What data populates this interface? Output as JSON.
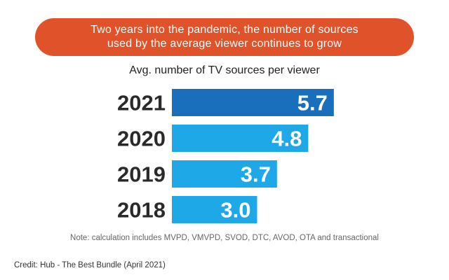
{
  "banner": {
    "line1": "Two years into the pandemic, the number of sources",
    "line2": "used by the average viewer continues to grow",
    "color": "#e0532a"
  },
  "chart_data": {
    "type": "bar",
    "orientation": "horizontal",
    "title": "Avg. number of TV sources per viewer",
    "categories": [
      "2021",
      "2020",
      "2019",
      "2018"
    ],
    "values": [
      5.7,
      4.8,
      3.7,
      3.0
    ],
    "value_labels": [
      "5.7",
      "4.8",
      "3.7",
      "3.0"
    ],
    "xlim": [
      0,
      6.5
    ],
    "grid": false,
    "legend": "none",
    "colors": [
      "#1a6fbd",
      "#1fa8e8",
      "#1fa8e8",
      "#1fa8e8"
    ]
  },
  "footer": {
    "note": "Note: calculation includes MVPD, VMVPD, SVOD, DTC, AVOD, OTA and transactional",
    "credit": "Credit: Hub - The Best Bundle (April 2021)"
  }
}
